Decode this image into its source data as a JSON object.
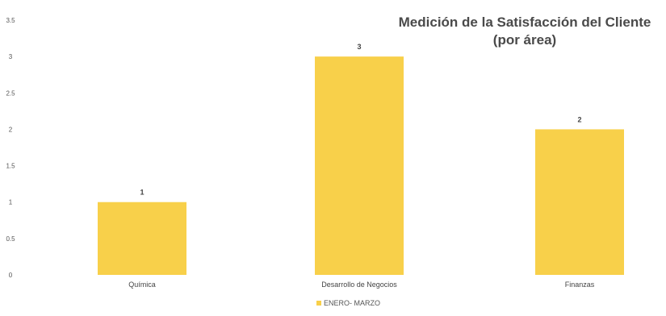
{
  "chart_data": {
    "type": "bar",
    "title_lines": [
      "Medición de la Satisfacción del Cliente",
      "(por área)"
    ],
    "categories": [
      "Química",
      "Desarrollo de Negocios",
      "Finanzas"
    ],
    "series": [
      {
        "name": "ENERO- MARZO",
        "values": [
          1,
          3,
          2
        ]
      }
    ],
    "data_labels": [
      "1",
      "3",
      "2"
    ],
    "y_ticks": [
      "0",
      "0.5",
      "1",
      "1.5",
      "2",
      "2.5",
      "3",
      "3.5"
    ],
    "ylim": [
      0,
      3.5
    ],
    "grid": false,
    "legend_position": "bottom",
    "bar_color": "#F8D04A"
  }
}
